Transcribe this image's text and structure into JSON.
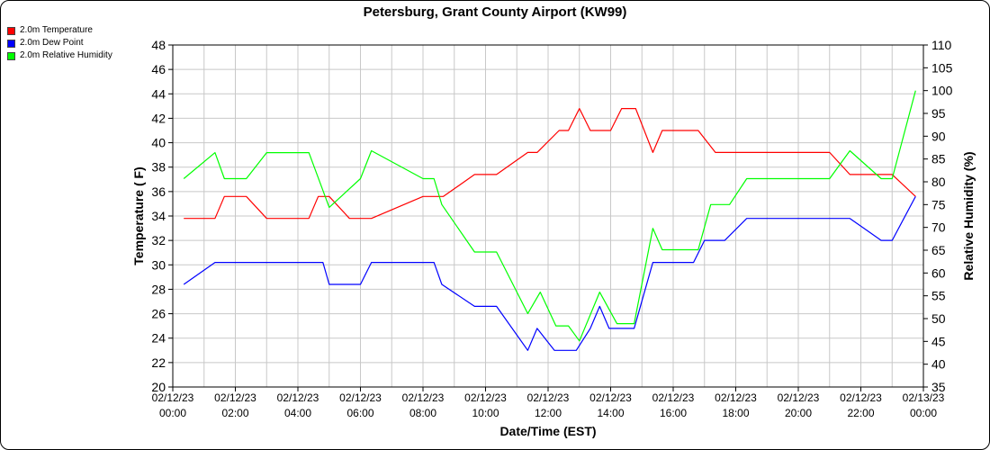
{
  "chart_data": {
    "type": "line",
    "title": "Petersburg, Grant County Airport (KW99)",
    "xlabel": "Date/Time (EST)",
    "ylabel_left": "Temperature ( F)",
    "ylabel_right": "Relative Humidity (%)",
    "xlim": [
      0,
      24
    ],
    "ylim_left": [
      20,
      48
    ],
    "ylim_right": [
      35,
      110
    ],
    "yticks_left": [
      20,
      22,
      24,
      26,
      28,
      30,
      32,
      34,
      36,
      38,
      40,
      42,
      44,
      46,
      48
    ],
    "yticks_right": [
      35,
      40,
      45,
      50,
      55,
      60,
      65,
      70,
      75,
      80,
      85,
      90,
      95,
      100,
      105,
      110
    ],
    "xticks": [
      {
        "hour": 0,
        "date": "02/12/23",
        "time": "00:00"
      },
      {
        "hour": 2,
        "date": "02/12/23",
        "time": "02:00"
      },
      {
        "hour": 4,
        "date": "02/12/23",
        "time": "04:00"
      },
      {
        "hour": 6,
        "date": "02/12/23",
        "time": "06:00"
      },
      {
        "hour": 8,
        "date": "02/12/23",
        "time": "08:00"
      },
      {
        "hour": 10,
        "date": "02/12/23",
        "time": "10:00"
      },
      {
        "hour": 12,
        "date": "02/12/23",
        "time": "12:00"
      },
      {
        "hour": 14,
        "date": "02/12/23",
        "time": "14:00"
      },
      {
        "hour": 16,
        "date": "02/12/23",
        "time": "16:00"
      },
      {
        "hour": 18,
        "date": "02/12/23",
        "time": "18:00"
      },
      {
        "hour": 20,
        "date": "02/12/23",
        "time": "20:00"
      },
      {
        "hour": 22,
        "date": "02/12/23",
        "time": "22:00"
      },
      {
        "hour": 24,
        "date": "02/13/23",
        "time": "00:00"
      }
    ],
    "grid": true,
    "legend_position": "top-left",
    "series": [
      {
        "name": "2.0m Temperature",
        "color": "#ff0000",
        "axis": "left",
        "points": [
          [
            0.35,
            33.8
          ],
          [
            1.35,
            33.8
          ],
          [
            1.65,
            35.6
          ],
          [
            2.35,
            35.6
          ],
          [
            3.0,
            33.8
          ],
          [
            4.35,
            33.8
          ],
          [
            4.65,
            35.6
          ],
          [
            5.0,
            35.6
          ],
          [
            5.65,
            33.8
          ],
          [
            6.35,
            33.8
          ],
          [
            8.0,
            35.6
          ],
          [
            8.65,
            35.6
          ],
          [
            9.65,
            37.4
          ],
          [
            10.35,
            37.4
          ],
          [
            11.35,
            39.2
          ],
          [
            11.65,
            39.2
          ],
          [
            12.35,
            41.0
          ],
          [
            12.65,
            41.0
          ],
          [
            13.0,
            42.8
          ],
          [
            13.35,
            41.0
          ],
          [
            14.0,
            41.0
          ],
          [
            14.35,
            42.8
          ],
          [
            14.8,
            42.8
          ],
          [
            15.35,
            39.2
          ],
          [
            15.65,
            41.0
          ],
          [
            16.8,
            41.0
          ],
          [
            17.35,
            39.2
          ],
          [
            21.0,
            39.2
          ],
          [
            21.65,
            37.4
          ],
          [
            23.0,
            37.4
          ],
          [
            23.75,
            35.6
          ]
        ]
      },
      {
        "name": "2.0m Dew Point",
        "color": "#0000ff",
        "axis": "left",
        "points": [
          [
            0.35,
            28.4
          ],
          [
            1.35,
            30.2
          ],
          [
            4.8,
            30.2
          ],
          [
            5.0,
            28.4
          ],
          [
            6.0,
            28.4
          ],
          [
            6.35,
            30.2
          ],
          [
            8.35,
            30.2
          ],
          [
            8.6,
            28.4
          ],
          [
            9.65,
            26.6
          ],
          [
            10.35,
            26.6
          ],
          [
            11.35,
            23.0
          ],
          [
            11.65,
            24.8
          ],
          [
            12.2,
            23.0
          ],
          [
            12.9,
            23.0
          ],
          [
            13.35,
            24.8
          ],
          [
            13.65,
            26.6
          ],
          [
            13.95,
            24.8
          ],
          [
            14.75,
            24.8
          ],
          [
            15.35,
            30.2
          ],
          [
            16.65,
            30.2
          ],
          [
            17.0,
            32.0
          ],
          [
            17.65,
            32.0
          ],
          [
            18.35,
            33.8
          ],
          [
            21.65,
            33.8
          ],
          [
            22.65,
            32.0
          ],
          [
            23.0,
            32.0
          ],
          [
            23.75,
            35.6
          ]
        ]
      },
      {
        "name": "2.0m Relative Humidity",
        "color": "#00ff00",
        "axis": "right",
        "points": [
          [
            0.35,
            80.7
          ],
          [
            1.35,
            86.4
          ],
          [
            1.65,
            80.7
          ],
          [
            2.35,
            80.7
          ],
          [
            3.0,
            86.4
          ],
          [
            4.35,
            86.4
          ],
          [
            5.0,
            74.4
          ],
          [
            6.0,
            80.7
          ],
          [
            6.35,
            86.8
          ],
          [
            8.0,
            80.7
          ],
          [
            8.35,
            80.7
          ],
          [
            8.6,
            75.0
          ],
          [
            9.65,
            64.6
          ],
          [
            10.35,
            64.6
          ],
          [
            11.35,
            51.1
          ],
          [
            11.75,
            55.8
          ],
          [
            12.25,
            48.4
          ],
          [
            12.65,
            48.4
          ],
          [
            13.0,
            45.1
          ],
          [
            13.65,
            55.8
          ],
          [
            14.2,
            48.9
          ],
          [
            14.75,
            48.9
          ],
          [
            15.35,
            69.8
          ],
          [
            15.65,
            65.1
          ],
          [
            16.8,
            65.1
          ],
          [
            17.2,
            75.0
          ],
          [
            17.8,
            75.0
          ],
          [
            18.35,
            80.7
          ],
          [
            21.0,
            80.7
          ],
          [
            21.65,
            86.8
          ],
          [
            22.65,
            80.7
          ],
          [
            23.0,
            80.7
          ],
          [
            23.75,
            100.0
          ]
        ]
      }
    ]
  }
}
